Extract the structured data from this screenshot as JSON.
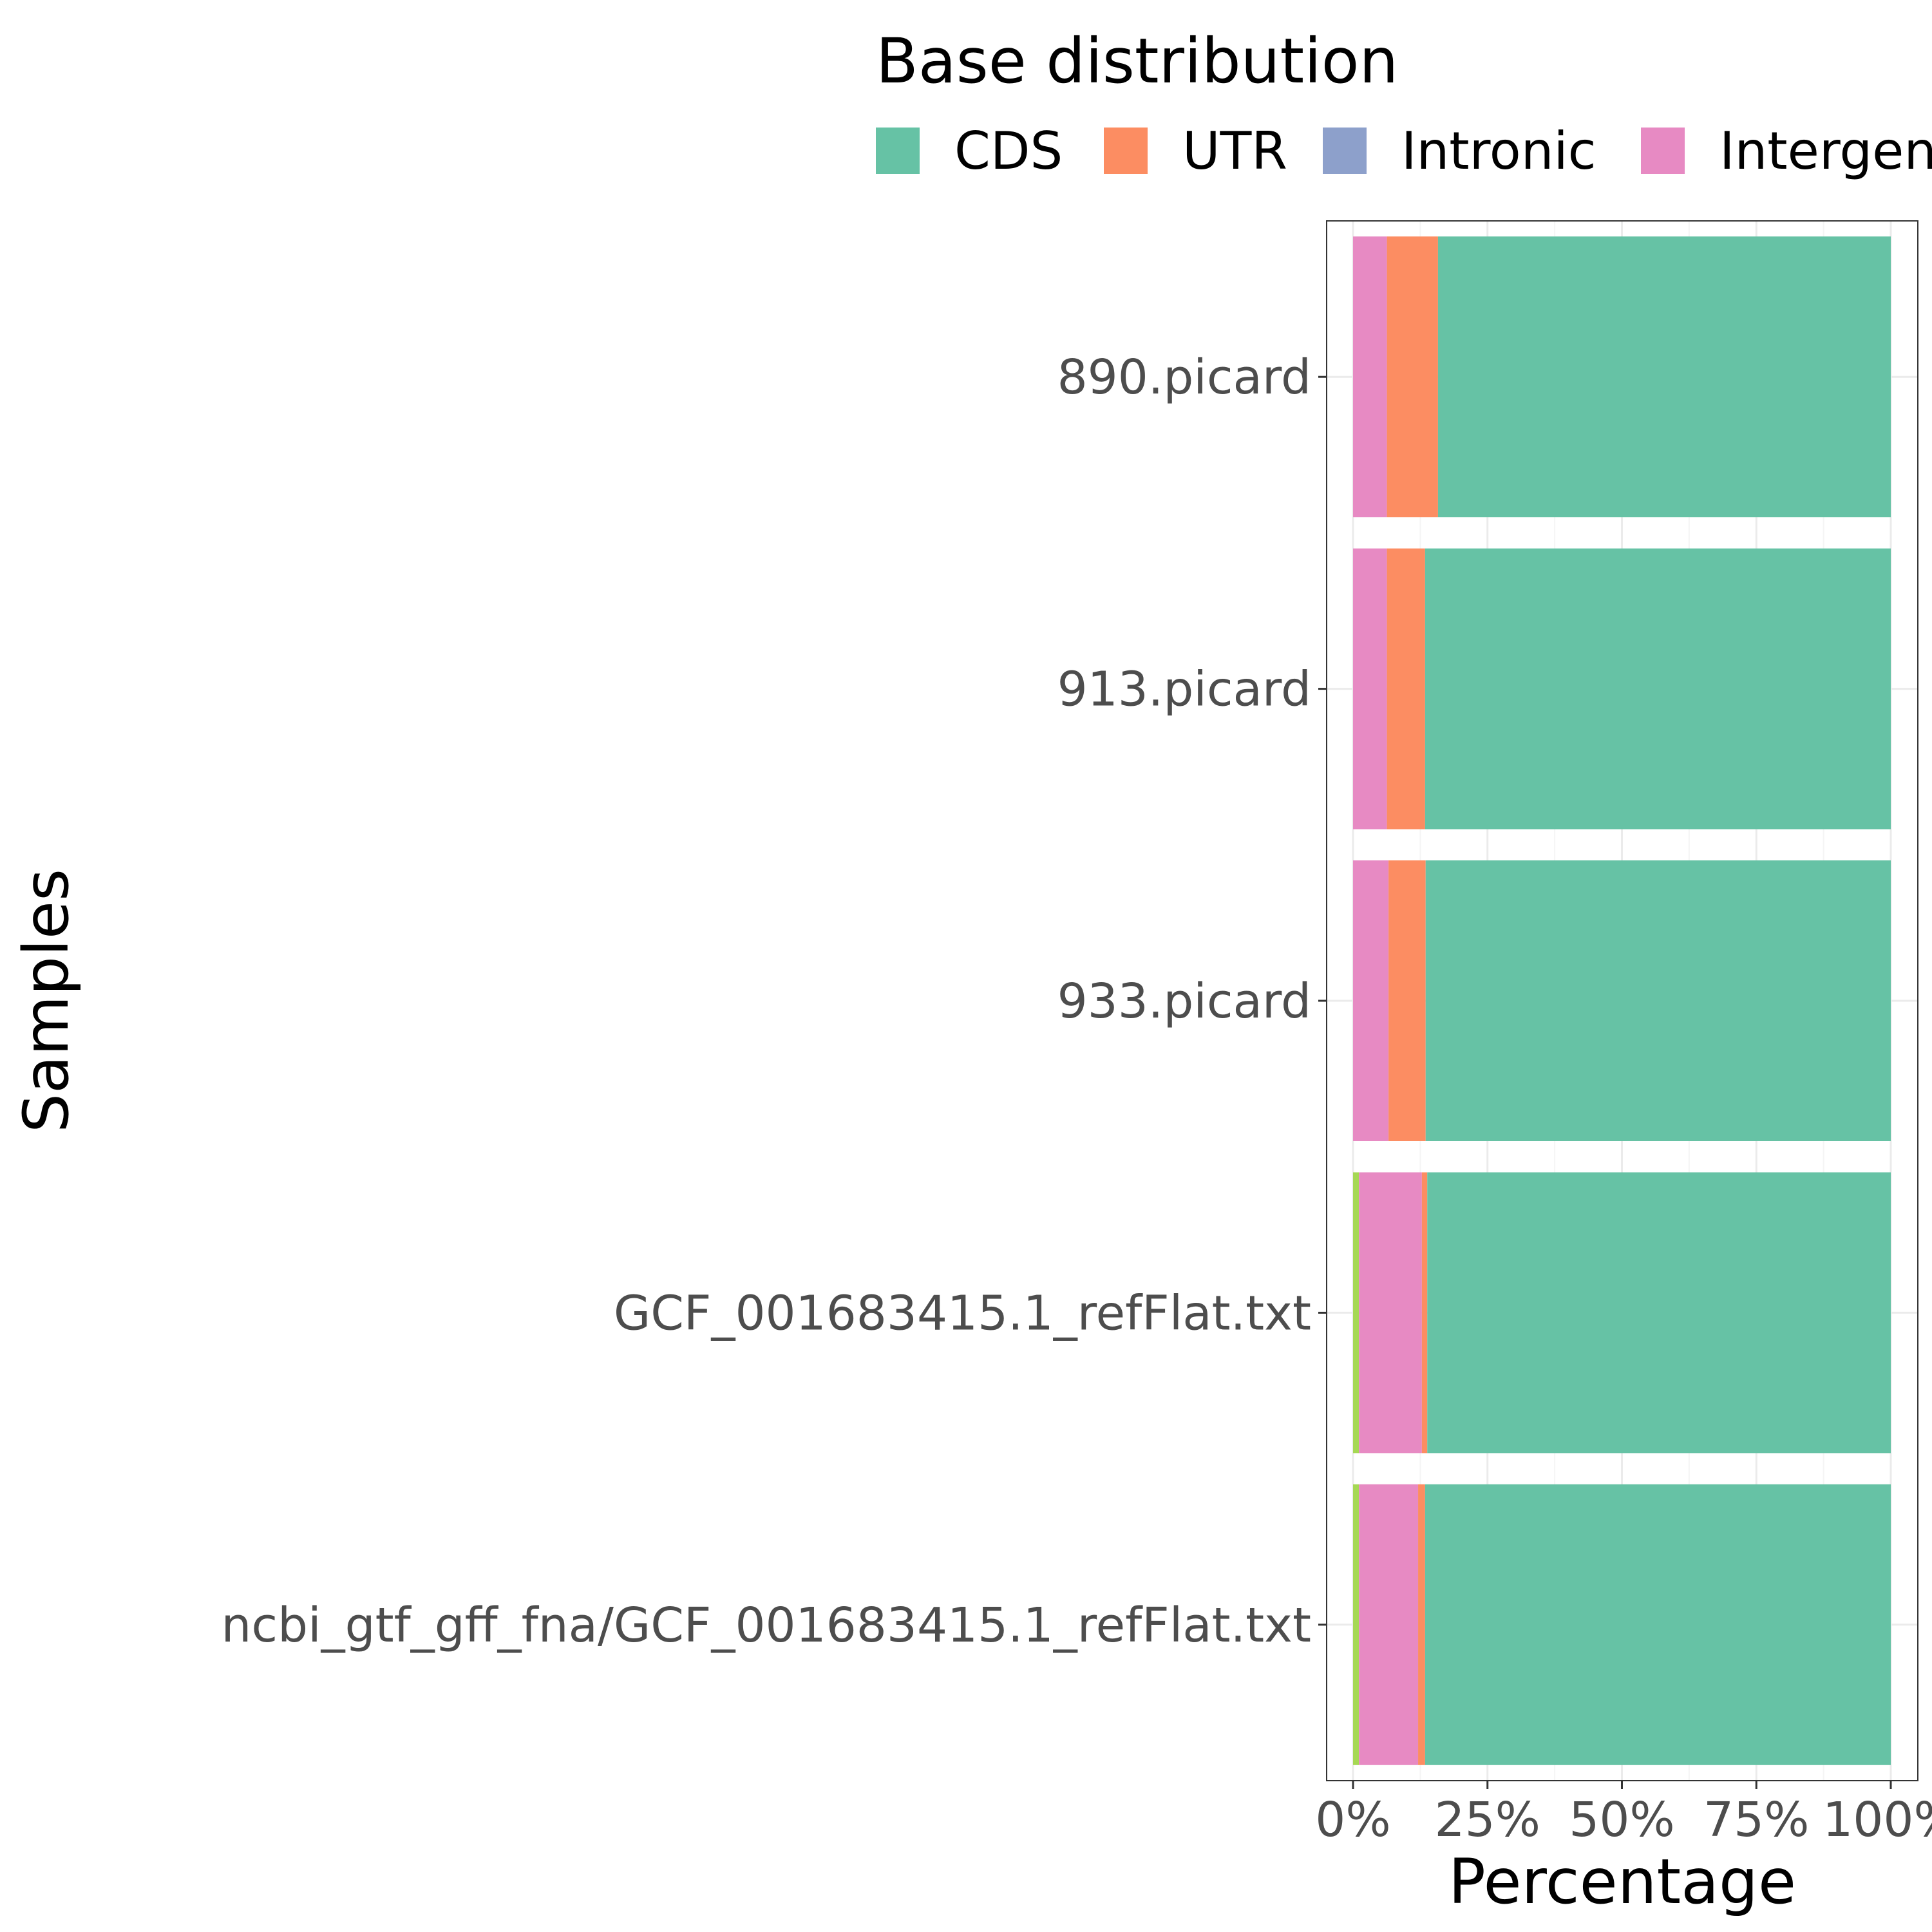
{
  "chart_data": {
    "type": "bar",
    "orientation": "horizontal",
    "stacked": true,
    "title": "",
    "xlabel": "Percentage",
    "ylabel": "Samples",
    "xlim": [
      0,
      100
    ],
    "x_ticks": [
      "0%",
      "25%",
      "50%",
      "75%",
      "100%"
    ],
    "x_tick_values": [
      0,
      25,
      50,
      75,
      100
    ],
    "grid": true,
    "legend": {
      "title": "Base distribution",
      "placement": "top",
      "entries": [
        "CDS",
        "UTR",
        "Intronic",
        "Intergen"
      ]
    },
    "categories": [
      "890.picard",
      "913.picard",
      "933.picard",
      "GCF_001683415.1_refFlat.txt",
      "ncbi_gtf_gff_fna/GCF_001683415.1_refFlat.txt"
    ],
    "series": [
      {
        "key": "other",
        "color": "#a6d854",
        "values": [
          0,
          0,
          0,
          1.1,
          1.1
        ]
      },
      {
        "key": "intergenic",
        "color": "#e78ac3",
        "values": [
          6.3,
          6.3,
          6.6,
          11.7,
          11.0
        ]
      },
      {
        "key": "intronic",
        "color": "#8da0cb",
        "values": [
          0,
          0,
          0,
          0,
          0
        ]
      },
      {
        "key": "utr",
        "color": "#fc8d62",
        "values": [
          9.5,
          7.1,
          6.9,
          1.0,
          1.3
        ]
      },
      {
        "key": "cds",
        "color": "#66c2a5",
        "values": [
          84.2,
          86.6,
          86.5,
          86.2,
          86.6
        ]
      }
    ]
  },
  "colors": {
    "cds": "#66c2a5",
    "utr": "#fc8d62",
    "intronic": "#8da0cb",
    "intergenic": "#e78ac3",
    "other": "#a6d854",
    "grid_major": "#ebebeb",
    "grid_minor": "#f5f5f5",
    "panel_border": "#333333"
  }
}
